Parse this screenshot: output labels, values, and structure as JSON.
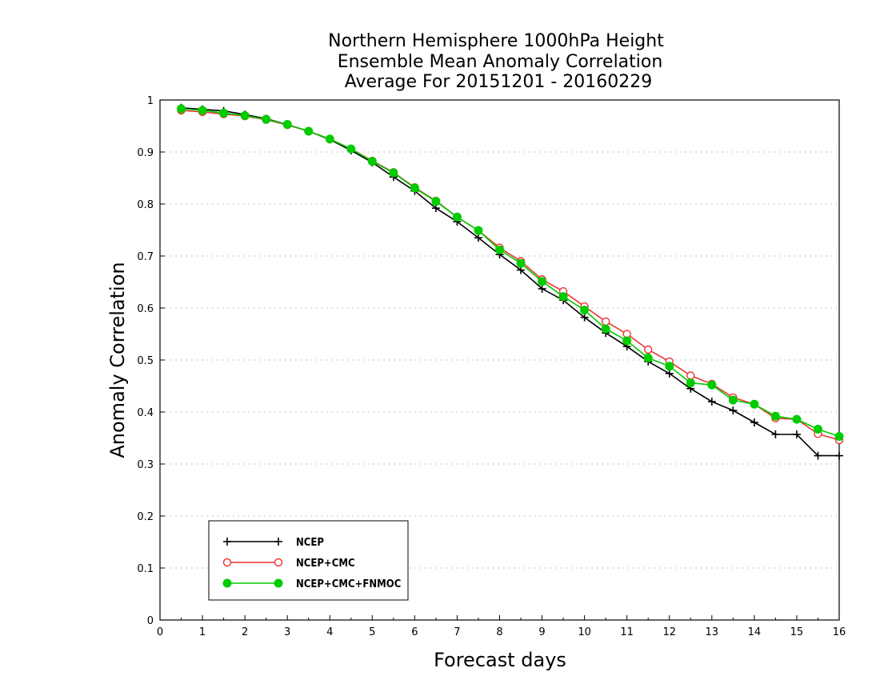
{
  "chart_data": {
    "type": "line",
    "title_lines": [
      "Northern Hemisphere 1000hPa Height",
      "Ensemble Mean Anomaly Correlation",
      "Average For 20151201 - 20160229"
    ],
    "xlabel": "Forecast days",
    "ylabel": "Anomaly Correlation",
    "xlim": [
      0,
      16
    ],
    "ylim": [
      0,
      1
    ],
    "x_ticks": [
      "0",
      "1",
      "2",
      "3",
      "4",
      "5",
      "6",
      "7",
      "8",
      "9",
      "10",
      "11",
      "12",
      "13",
      "14",
      "15",
      "16"
    ],
    "y_ticks": [
      "0",
      "0.1",
      "0.2",
      "0.3",
      "0.4",
      "0.5",
      "0.6",
      "0.7",
      "0.8",
      "0.9",
      "1"
    ],
    "grid": true,
    "legend_position": "bottom-left",
    "x": [
      0.5,
      1,
      1.5,
      2,
      2.5,
      3,
      3.5,
      4,
      4.5,
      5,
      5.5,
      6,
      6.5,
      7,
      7.5,
      8,
      8.5,
      9,
      9.5,
      10,
      10.5,
      11,
      11.5,
      12,
      12.5,
      13,
      13.5,
      14,
      14.5,
      15,
      15.5,
      16
    ],
    "series": [
      {
        "name": "NCEP",
        "color": "#000000",
        "marker": "plus",
        "values": [
          0.985,
          0.982,
          0.979,
          0.972,
          0.964,
          0.953,
          0.94,
          0.924,
          0.903,
          0.88,
          0.852,
          0.825,
          0.792,
          0.766,
          0.735,
          0.703,
          0.673,
          0.637,
          0.615,
          0.582,
          0.552,
          0.526,
          0.497,
          0.474,
          0.445,
          0.42,
          0.403,
          0.38,
          0.357,
          0.357,
          0.316,
          0.316
        ]
      },
      {
        "name": "NCEP+CMC",
        "color": "#ee3333",
        "marker": "open-circle",
        "values": [
          0.98,
          0.977,
          0.973,
          0.969,
          0.962,
          0.952,
          0.94,
          0.925,
          0.906,
          0.883,
          0.861,
          0.832,
          0.806,
          0.775,
          0.749,
          0.716,
          0.69,
          0.655,
          0.632,
          0.603,
          0.574,
          0.55,
          0.52,
          0.497,
          0.47,
          0.454,
          0.428,
          0.415,
          0.388,
          0.386,
          0.358,
          0.346
        ]
      },
      {
        "name": "NCEP+CMC+FNMOC",
        "color": "#00cc00",
        "marker": "filled-circle",
        "values": [
          0.983,
          0.98,
          0.975,
          0.97,
          0.963,
          0.953,
          0.94,
          0.925,
          0.906,
          0.882,
          0.86,
          0.831,
          0.805,
          0.775,
          0.749,
          0.712,
          0.686,
          0.651,
          0.622,
          0.596,
          0.56,
          0.537,
          0.504,
          0.488,
          0.456,
          0.452,
          0.423,
          0.415,
          0.392,
          0.386,
          0.367,
          0.353
        ]
      }
    ]
  }
}
